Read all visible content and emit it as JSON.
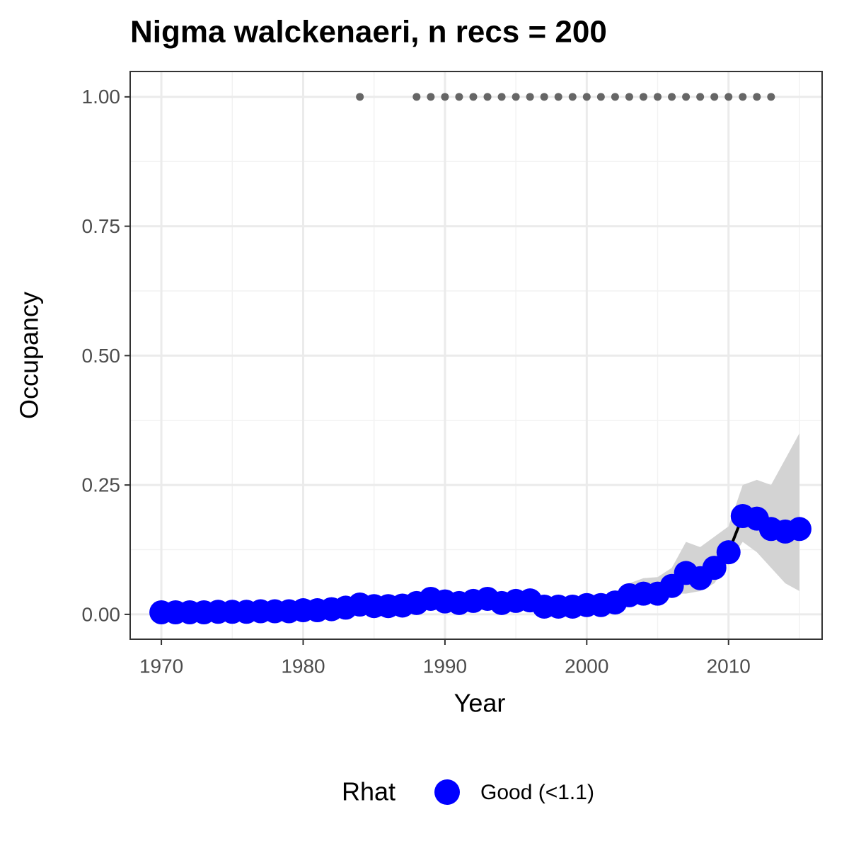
{
  "chart_data": {
    "type": "line",
    "title": "Nigma walckenaeri, n recs = 200",
    "x_label": "Year",
    "y_label": "Occupancy",
    "x": [
      1970,
      1971,
      1972,
      1973,
      1974,
      1975,
      1976,
      1977,
      1978,
      1979,
      1980,
      1981,
      1982,
      1983,
      1984,
      1985,
      1986,
      1987,
      1988,
      1989,
      1990,
      1991,
      1992,
      1993,
      1994,
      1995,
      1996,
      1997,
      1998,
      1999,
      2000,
      2001,
      2002,
      2003,
      2004,
      2005,
      2006,
      2007,
      2008,
      2009,
      2010,
      2011,
      2012,
      2013,
      2014,
      2015
    ],
    "series": [
      {
        "name": "Good (<1.1)",
        "color": "#0000ff",
        "values": [
          0.004,
          0.004,
          0.004,
          0.004,
          0.005,
          0.005,
          0.005,
          0.006,
          0.006,
          0.006,
          0.008,
          0.008,
          0.01,
          0.013,
          0.019,
          0.016,
          0.016,
          0.017,
          0.022,
          0.03,
          0.025,
          0.022,
          0.026,
          0.03,
          0.022,
          0.026,
          0.027,
          0.015,
          0.015,
          0.015,
          0.018,
          0.018,
          0.023,
          0.037,
          0.04,
          0.04,
          0.055,
          0.08,
          0.07,
          0.09,
          0.12,
          0.19,
          0.185,
          0.165,
          0.16,
          0.165
        ]
      }
    ],
    "ci_lower": [
      0.002,
      0.002,
      0.002,
      0.002,
      0.003,
      0.003,
      0.003,
      0.004,
      0.004,
      0.004,
      0.005,
      0.005,
      0.006,
      0.008,
      0.012,
      0.01,
      0.01,
      0.011,
      0.015,
      0.021,
      0.017,
      0.015,
      0.018,
      0.021,
      0.015,
      0.018,
      0.019,
      0.01,
      0.01,
      0.01,
      0.012,
      0.012,
      0.016,
      0.026,
      0.028,
      0.029,
      0.04,
      0.04,
      0.045,
      0.06,
      0.1,
      0.14,
      0.12,
      0.09,
      0.06,
      0.045
    ],
    "ci_upper": [
      0.007,
      0.007,
      0.007,
      0.007,
      0.008,
      0.008,
      0.008,
      0.009,
      0.009,
      0.009,
      0.012,
      0.012,
      0.015,
      0.019,
      0.027,
      0.023,
      0.023,
      0.024,
      0.031,
      0.041,
      0.035,
      0.031,
      0.036,
      0.041,
      0.031,
      0.036,
      0.037,
      0.022,
      0.022,
      0.022,
      0.026,
      0.026,
      0.033,
      0.06,
      0.07,
      0.072,
      0.09,
      0.14,
      0.13,
      0.15,
      0.17,
      0.25,
      0.26,
      0.25,
      0.3,
      0.35
    ],
    "band_color": "#d3d3d3",
    "line_color": "#000000",
    "records": {
      "color": "#666666",
      "x": [
        1984,
        1988,
        1989,
        1990,
        1991,
        1992,
        1993,
        1994,
        1995,
        1996,
        1997,
        1998,
        1999,
        2000,
        2001,
        2002,
        2003,
        2004,
        2005,
        2006,
        2007,
        2008,
        2009,
        2010,
        2011,
        2012,
        2013
      ],
      "values": [
        1,
        1,
        1,
        1,
        1,
        1,
        1,
        1,
        1,
        1,
        1,
        1,
        1,
        1,
        1,
        1,
        1,
        1,
        1,
        1,
        1,
        1,
        1,
        1,
        1,
        1,
        1
      ]
    },
    "xlim": [
      1967.8,
      2016.6
    ],
    "ylim": [
      -0.048,
      1.049
    ],
    "xticks": [
      1970,
      1980,
      1990,
      2000,
      2010
    ],
    "yticks": [
      {
        "value": 0,
        "label": "0.00"
      },
      {
        "value": 0.25,
        "label": "0.25"
      },
      {
        "value": 0.5,
        "label": "0.50"
      },
      {
        "value": 0.75,
        "label": "0.75"
      },
      {
        "value": 1,
        "label": "1.00"
      }
    ],
    "grid": true,
    "legend_title": "Rhat",
    "legend_position": "bottom"
  }
}
